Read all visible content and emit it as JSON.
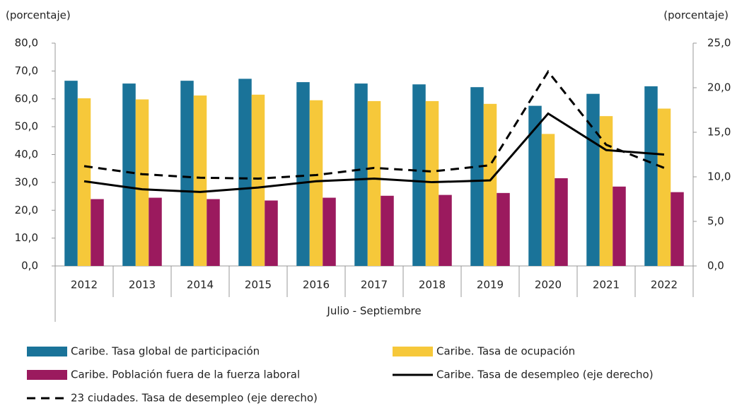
{
  "chart_data": {
    "type": "bar",
    "ylabel": "(porcentaje)",
    "y2label": "(porcentaje)",
    "xlabel": "Julio - Septiembre",
    "categories": [
      "2012",
      "2013",
      "2014",
      "2015",
      "2016",
      "2017",
      "2018",
      "2019",
      "2020",
      "2021",
      "2022"
    ],
    "ylim": [
      0,
      80
    ],
    "yticks": [
      {
        "value": 0,
        "label": "0,0"
      },
      {
        "value": 10,
        "label": "10,0"
      },
      {
        "value": 20,
        "label": "20,0"
      },
      {
        "value": 30,
        "label": "30,0"
      },
      {
        "value": 40,
        "label": "40,0"
      },
      {
        "value": 50,
        "label": "50,0"
      },
      {
        "value": 60,
        "label": "60,0"
      },
      {
        "value": 70,
        "label": "70,0"
      },
      {
        "value": 80,
        "label": "80,0"
      }
    ],
    "y2lim": [
      0,
      25
    ],
    "y2ticks": [
      {
        "value": 0,
        "label": "0,0"
      },
      {
        "value": 5,
        "label": "5,0"
      },
      {
        "value": 10,
        "label": "10,0"
      },
      {
        "value": 15,
        "label": "15,0"
      },
      {
        "value": 20,
        "label": "20,0"
      },
      {
        "value": 25,
        "label": "25,0"
      }
    ],
    "series": [
      {
        "name": "Caribe. Tasa global de participación",
        "type": "bar",
        "color": "#1a7399",
        "values": [
          66.5,
          65.5,
          66.5,
          67.2,
          66.0,
          65.5,
          65.2,
          64.2,
          57.5,
          61.8,
          64.5
        ]
      },
      {
        "name": "Caribe. Tasa de ocupación",
        "type": "bar",
        "color": "#f6c83a",
        "values": [
          60.2,
          59.8,
          61.2,
          61.5,
          59.5,
          59.2,
          59.2,
          58.2,
          47.4,
          53.8,
          56.5
        ]
      },
      {
        "name": "Caribe. Población fuera de la fuerza laboral",
        "type": "bar",
        "color": "#9b1a5e",
        "values": [
          24.0,
          24.5,
          24.0,
          23.5,
          24.5,
          25.2,
          25.5,
          26.2,
          31.5,
          28.5,
          26.5
        ]
      },
      {
        "name": "Caribe. Tasa de desempleo (eje derecho)",
        "type": "line",
        "axis": "y2",
        "color": "#000000",
        "values": [
          9.5,
          8.6,
          8.3,
          8.8,
          9.5,
          9.8,
          9.4,
          9.6,
          17.1,
          13.0,
          12.5
        ]
      },
      {
        "name": "23 ciudades. Tasa de desempleo (eje derecho)",
        "type": "line",
        "axis": "y2",
        "color": "#000000",
        "dashed": true,
        "values": [
          11.2,
          10.3,
          9.9,
          9.8,
          10.2,
          11.0,
          10.6,
          11.3,
          21.8,
          13.6,
          11.0
        ]
      }
    ]
  }
}
